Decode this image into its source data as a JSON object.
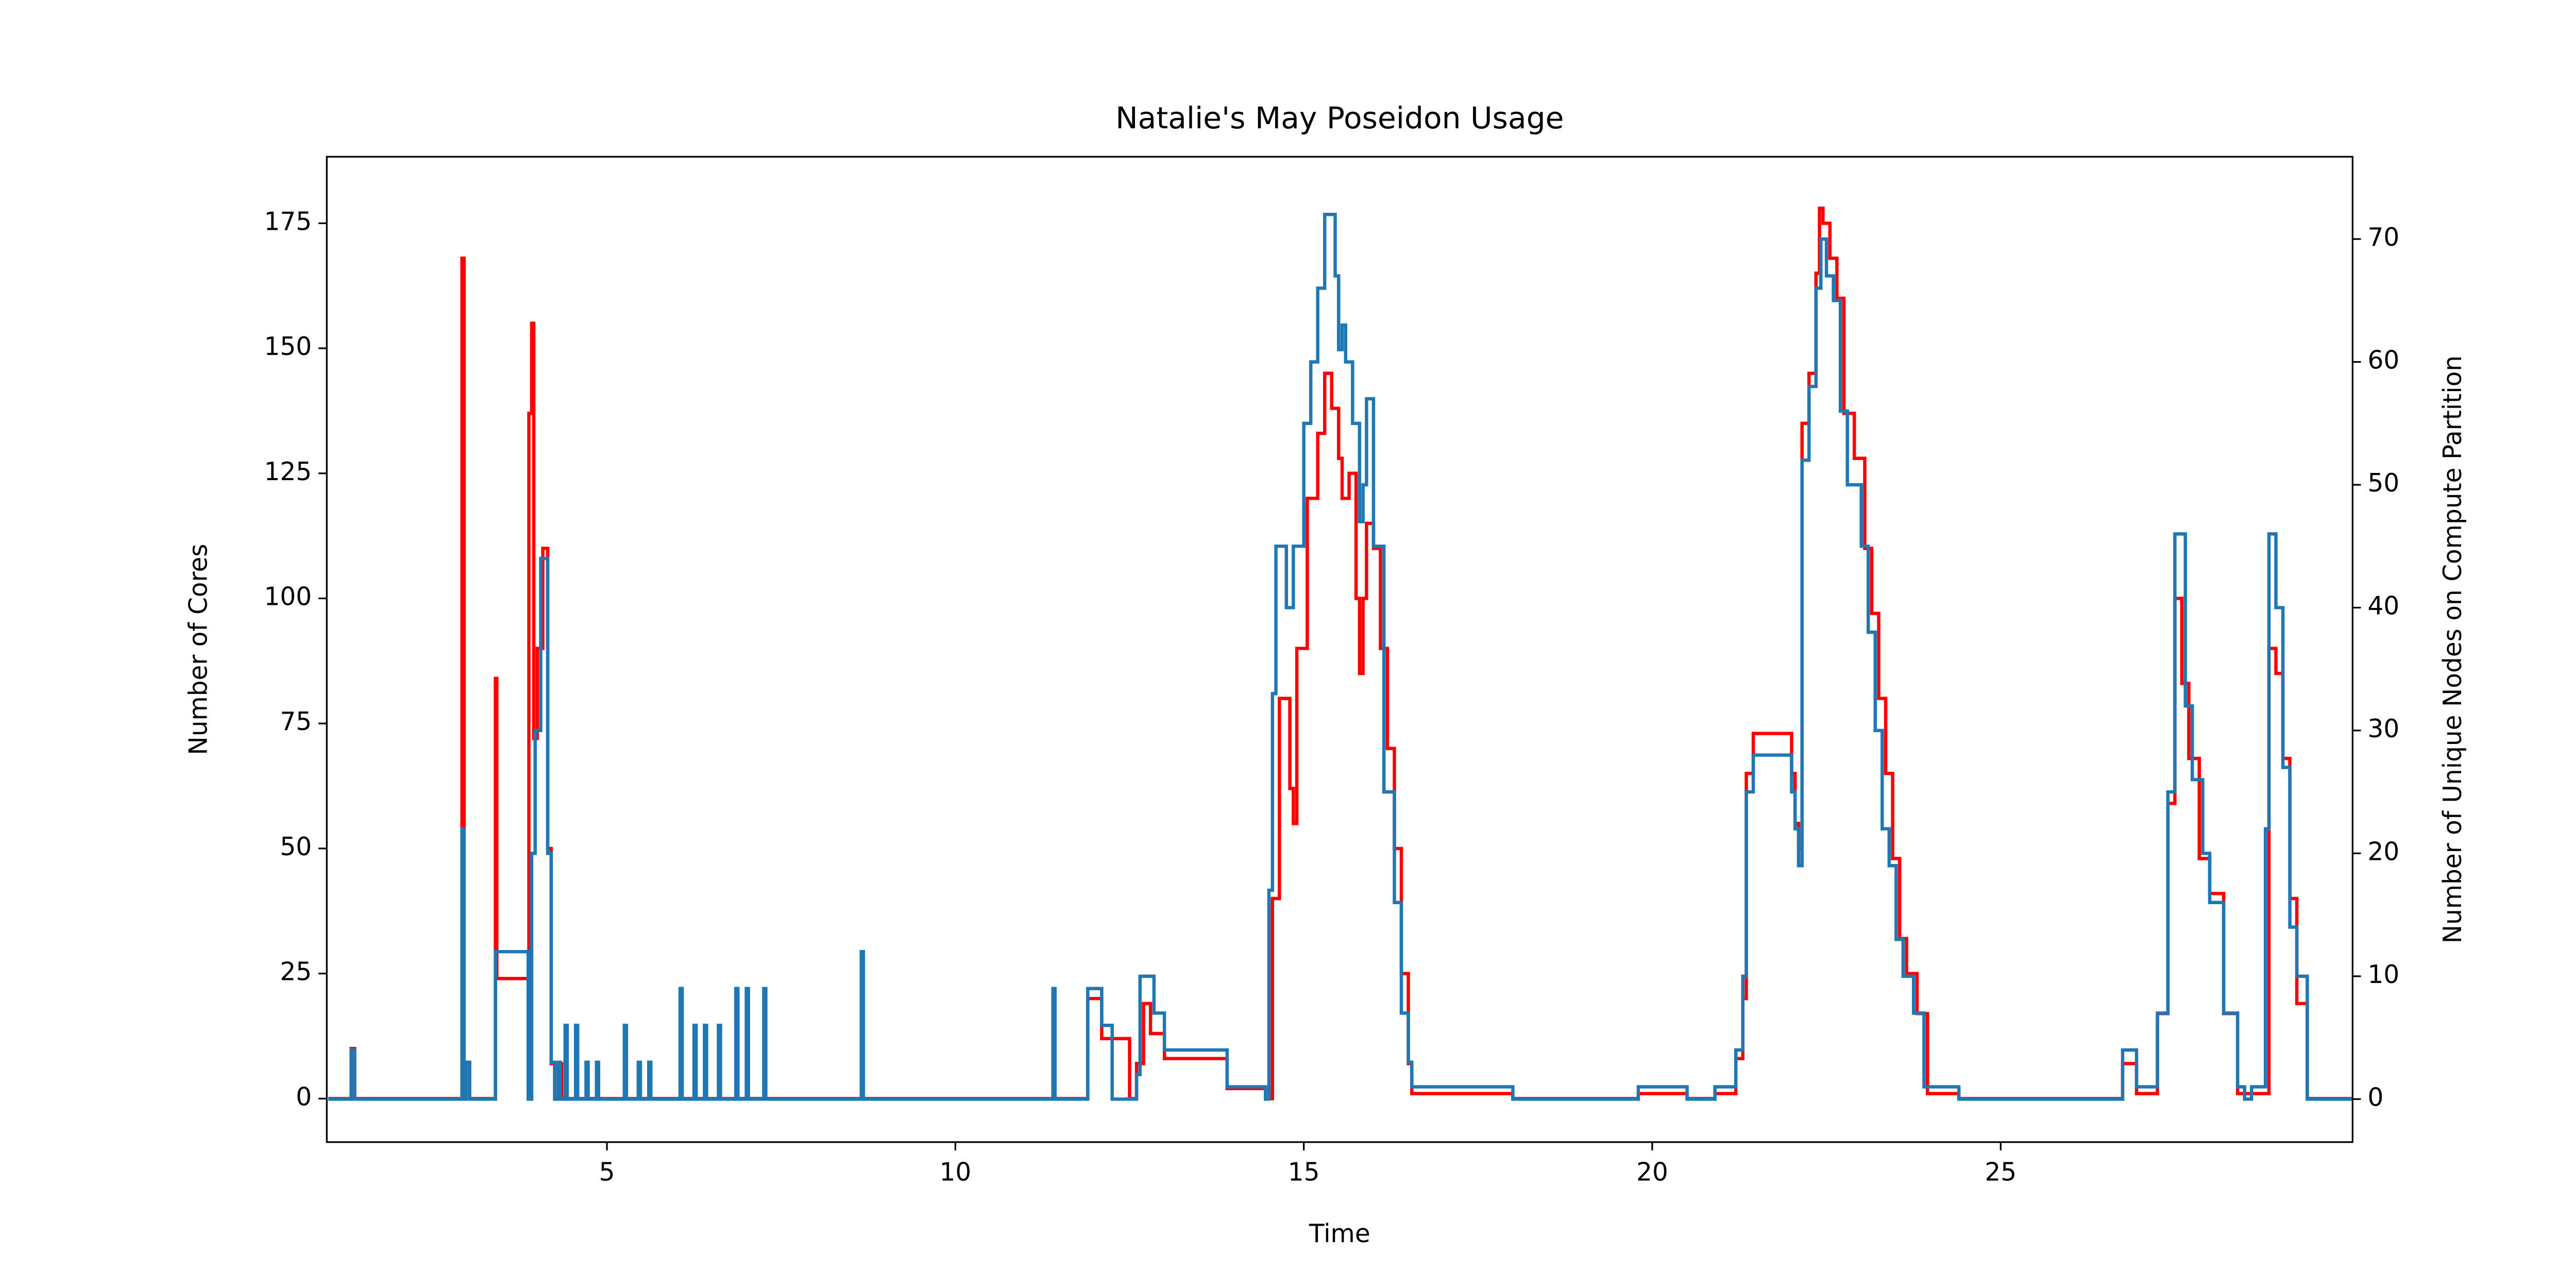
{
  "chart_data": {
    "type": "step",
    "title": "Natalie's May Poseidon Usage",
    "xlabel": "Time",
    "ylabel": "Number of Cores",
    "y2label": "Number of Unique Nodes on Compute Partition",
    "xlim": [
      0.98,
      30.05
    ],
    "xticks": [
      5,
      10,
      15,
      20,
      25
    ],
    "ylim": [
      -8.7,
      188.3
    ],
    "yticks": [
      0,
      25,
      50,
      75,
      100,
      125,
      150,
      175
    ],
    "y2lim": [
      -3.5,
      76.7
    ],
    "y2ticks": [
      0,
      10,
      20,
      30,
      40,
      50,
      60,
      70
    ],
    "series": [
      {
        "color": "#ff0000",
        "x": [
          1.0,
          1.33,
          1.38,
          2.9,
          2.92,
          2.95,
          2.98,
          3.03,
          3.4,
          3.42,
          3.85,
          3.87,
          3.88,
          3.92,
          3.95,
          4.0,
          4.08,
          4.15,
          4.2,
          4.25,
          4.3,
          4.35,
          11.4,
          11.43,
          11.9,
          12.1,
          12.5,
          12.6,
          12.7,
          12.8,
          13.0,
          13.9,
          14.5,
          14.55,
          14.65,
          14.8,
          14.85,
          14.9,
          15.05,
          15.2,
          15.3,
          15.4,
          15.5,
          15.55,
          15.65,
          15.75,
          15.8,
          15.85,
          15.9,
          16.0,
          16.1,
          16.2,
          16.3,
          16.4,
          16.5,
          16.55,
          18.0,
          19.8,
          20.5,
          20.9,
          21.2,
          21.3,
          21.35,
          21.45,
          22.0,
          22.05,
          22.1,
          22.15,
          22.25,
          22.35,
          22.4,
          22.45,
          22.55,
          22.65,
          22.75,
          22.9,
          23.05,
          23.15,
          23.25,
          23.35,
          23.45,
          23.55,
          23.65,
          23.8,
          23.95,
          24.4,
          26.75,
          26.95,
          27.25,
          27.4,
          27.5,
          27.6,
          27.7,
          27.85,
          28.0,
          28.2,
          28.4,
          28.65,
          28.85,
          28.95,
          29.05,
          29.15,
          29.25,
          29.4,
          30.05
        ],
        "values": [
          0,
          10,
          0,
          0,
          168,
          0,
          7,
          0,
          84,
          24,
          24,
          0,
          137,
          155,
          72,
          90,
          110,
          50,
          7,
          0,
          7,
          0,
          22,
          0,
          20,
          12,
          0,
          7,
          19,
          13,
          8,
          2,
          0,
          40,
          80,
          62,
          55,
          90,
          120,
          133,
          145,
          138,
          128,
          120,
          125,
          100,
          85,
          100,
          115,
          110,
          90,
          70,
          50,
          25,
          7,
          1,
          0,
          1,
          0,
          1,
          8,
          20,
          65,
          73,
          65,
          55,
          50,
          135,
          145,
          165,
          178,
          175,
          168,
          160,
          137,
          128,
          110,
          97,
          80,
          65,
          48,
          32,
          25,
          17,
          1,
          0,
          7,
          1,
          17,
          59,
          100,
          83,
          68,
          48,
          41,
          17,
          1,
          1,
          90,
          85,
          68,
          40,
          19,
          0,
          0
        ]
      },
      {
        "color": "#1f77b4",
        "axis": "y2",
        "x": [
          1.0,
          1.33,
          1.38,
          2.9,
          2.92,
          2.95,
          2.98,
          3.03,
          3.4,
          3.85,
          3.87,
          3.92,
          3.97,
          4.05,
          4.15,
          4.2,
          4.25,
          4.3,
          4.33,
          4.4,
          4.43,
          4.55,
          4.58,
          4.7,
          4.73,
          4.85,
          4.88,
          5.25,
          5.28,
          5.45,
          5.48,
          5.6,
          5.63,
          6.05,
          6.08,
          6.25,
          6.28,
          6.4,
          6.43,
          6.6,
          6.63,
          6.85,
          6.88,
          7.0,
          7.03,
          7.25,
          7.28,
          8.65,
          8.68,
          11.4,
          11.43,
          11.9,
          12.1,
          12.25,
          12.6,
          12.65,
          12.85,
          13.0,
          13.9,
          14.45,
          14.5,
          14.55,
          14.6,
          14.75,
          14.85,
          15.0,
          15.1,
          15.2,
          15.3,
          15.45,
          15.5,
          15.55,
          15.6,
          15.7,
          15.8,
          15.85,
          15.9,
          16.0,
          16.15,
          16.3,
          16.4,
          16.5,
          16.55,
          18.0,
          19.8,
          20.5,
          20.9,
          21.2,
          21.3,
          21.35,
          21.45,
          22.0,
          22.05,
          22.1,
          22.15,
          22.25,
          22.35,
          22.42,
          22.5,
          22.6,
          22.7,
          22.8,
          23.0,
          23.1,
          23.2,
          23.3,
          23.4,
          23.5,
          23.6,
          23.75,
          23.9,
          24.4,
          26.75,
          26.95,
          27.25,
          27.4,
          27.5,
          27.65,
          27.75,
          27.9,
          28.0,
          28.2,
          28.4,
          28.5,
          28.6,
          28.8,
          28.85,
          28.95,
          29.05,
          29.15,
          29.25,
          29.4,
          30.05
        ],
        "values": [
          0,
          4,
          0,
          0,
          22,
          0,
          3,
          0,
          12,
          12,
          0,
          20,
          30,
          44,
          20,
          3,
          0,
          3,
          0,
          6,
          0,
          6,
          0,
          3,
          0,
          3,
          0,
          6,
          0,
          3,
          0,
          3,
          0,
          9,
          0,
          6,
          0,
          6,
          0,
          6,
          0,
          9,
          0,
          9,
          0,
          9,
          0,
          12,
          0,
          9,
          0,
          9,
          6,
          0,
          2,
          10,
          7,
          4,
          1,
          0,
          17,
          33,
          45,
          40,
          45,
          55,
          60,
          66,
          72,
          67,
          61,
          63,
          60,
          55,
          47,
          50,
          57,
          45,
          25,
          16,
          7,
          3,
          1,
          0,
          1,
          0,
          1,
          4,
          10,
          25,
          28,
          25,
          22,
          19,
          52,
          58,
          66,
          70,
          67,
          65,
          56,
          50,
          45,
          38,
          30,
          22,
          19,
          13,
          10,
          7,
          1,
          0,
          4,
          1,
          7,
          25,
          46,
          32,
          26,
          20,
          16,
          7,
          1,
          0,
          1,
          22,
          46,
          40,
          27,
          14,
          10,
          0,
          0
        ]
      }
    ]
  }
}
